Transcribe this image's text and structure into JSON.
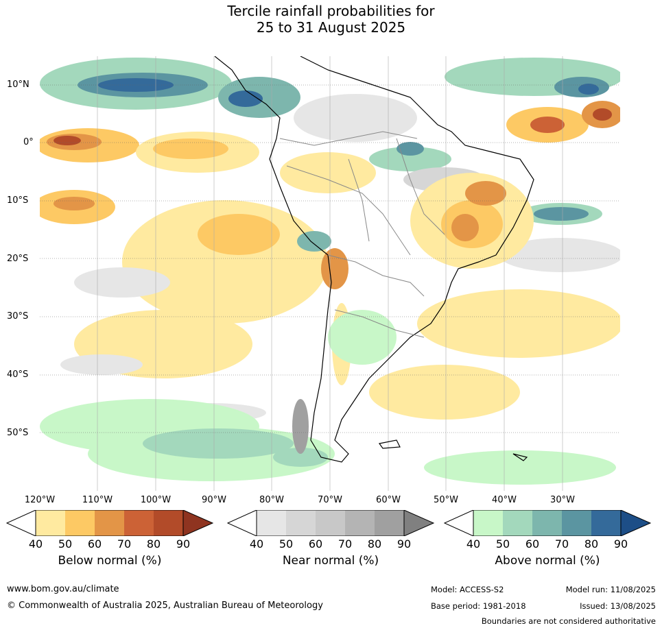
{
  "title": {
    "line1": "Tercile rainfall probabilities for",
    "line2": "25 to 31 August 2025"
  },
  "map": {
    "lat_labels": [
      "10°N",
      "0°",
      "10°S",
      "20°S",
      "30°S",
      "40°S",
      "50°S"
    ],
    "lon_labels": [
      "120°W",
      "110°W",
      "100°W",
      "90°W",
      "80°W",
      "70°W",
      "60°W",
      "50°W",
      "40°W",
      "30°W"
    ],
    "colors": {
      "below": [
        "#ffeaa0",
        "#fdc964",
        "#e39547",
        "#cc6236",
        "#b24b29",
        "#8f3420"
      ],
      "near": [
        "#e6e6e6",
        "#d6d6d6",
        "#c8c8c8",
        "#b4b4b4",
        "#a0a0a0",
        "#808080"
      ],
      "above": [
        "#c8f7c8",
        "#a3d8bc",
        "#7db6ad",
        "#5b95a1",
        "#346a9a",
        "#1d4e87"
      ]
    }
  },
  "colorbars": {
    "below": {
      "ticks": [
        "40",
        "50",
        "60",
        "70",
        "80",
        "90"
      ],
      "label": "Below normal (%)"
    },
    "near": {
      "ticks": [
        "40",
        "50",
        "60",
        "70",
        "80",
        "90"
      ],
      "label": "Near normal (%)"
    },
    "above": {
      "ticks": [
        "40",
        "50",
        "60",
        "70",
        "80",
        "90"
      ],
      "label": "Above normal (%)"
    }
  },
  "footer": {
    "website": "www.bom.gov.au/climate",
    "copyright": "© Commonwealth of Australia 2025, Australian Bureau of Meteorology",
    "model": "Model: ACCESS-S2",
    "base_period": "Base period: 1981-2018",
    "model_run": "Model run: 11/08/2025",
    "issued": "Issued: 13/08/2025",
    "boundaries_note": "Boundaries are not considered authoritative"
  }
}
